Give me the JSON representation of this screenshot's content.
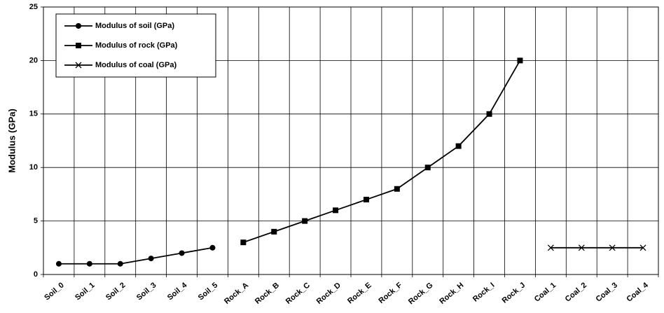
{
  "chart_data": {
    "type": "line",
    "y_label": "Modulus (GPa)",
    "categories": [
      "Soil_0",
      "Soil_1",
      "Soil_2",
      "Soil_3",
      "Soil_4",
      "Soil_5",
      "Rock_A",
      "Rock_B",
      "Rock_C",
      "Rock_D",
      "Rock_E",
      "Rock_F",
      "Rock_G",
      "Rock_H",
      "Rock_I",
      "Rock_J",
      "Coal_1",
      "Coal_2",
      "Coal_3",
      "Coal_4"
    ],
    "series": [
      {
        "name": "Modulus of soil (GPa)",
        "color": "#000000",
        "marker": "circle",
        "values": [
          1,
          1,
          1,
          1.5,
          2,
          2.5,
          null,
          null,
          null,
          null,
          null,
          null,
          null,
          null,
          null,
          null,
          null,
          null,
          null,
          null
        ]
      },
      {
        "name": "Modulus of rock (GPa)",
        "color": "#000000",
        "marker": "square",
        "values": [
          null,
          null,
          null,
          null,
          null,
          null,
          3,
          4,
          5,
          6,
          7,
          8,
          10,
          12,
          15,
          20,
          null,
          null,
          null,
          null
        ]
      },
      {
        "name": "Modulus of coal (GPa)",
        "color": "#000000",
        "marker": "x",
        "values": [
          null,
          null,
          null,
          null,
          null,
          null,
          null,
          null,
          null,
          null,
          null,
          null,
          null,
          null,
          null,
          null,
          2.5,
          2.5,
          2.5,
          2.5
        ]
      }
    ],
    "ylim": [
      0,
      25
    ],
    "yticks": [
      0,
      5,
      10,
      15,
      20,
      25
    ],
    "grid": true,
    "legend": "top-left"
  }
}
